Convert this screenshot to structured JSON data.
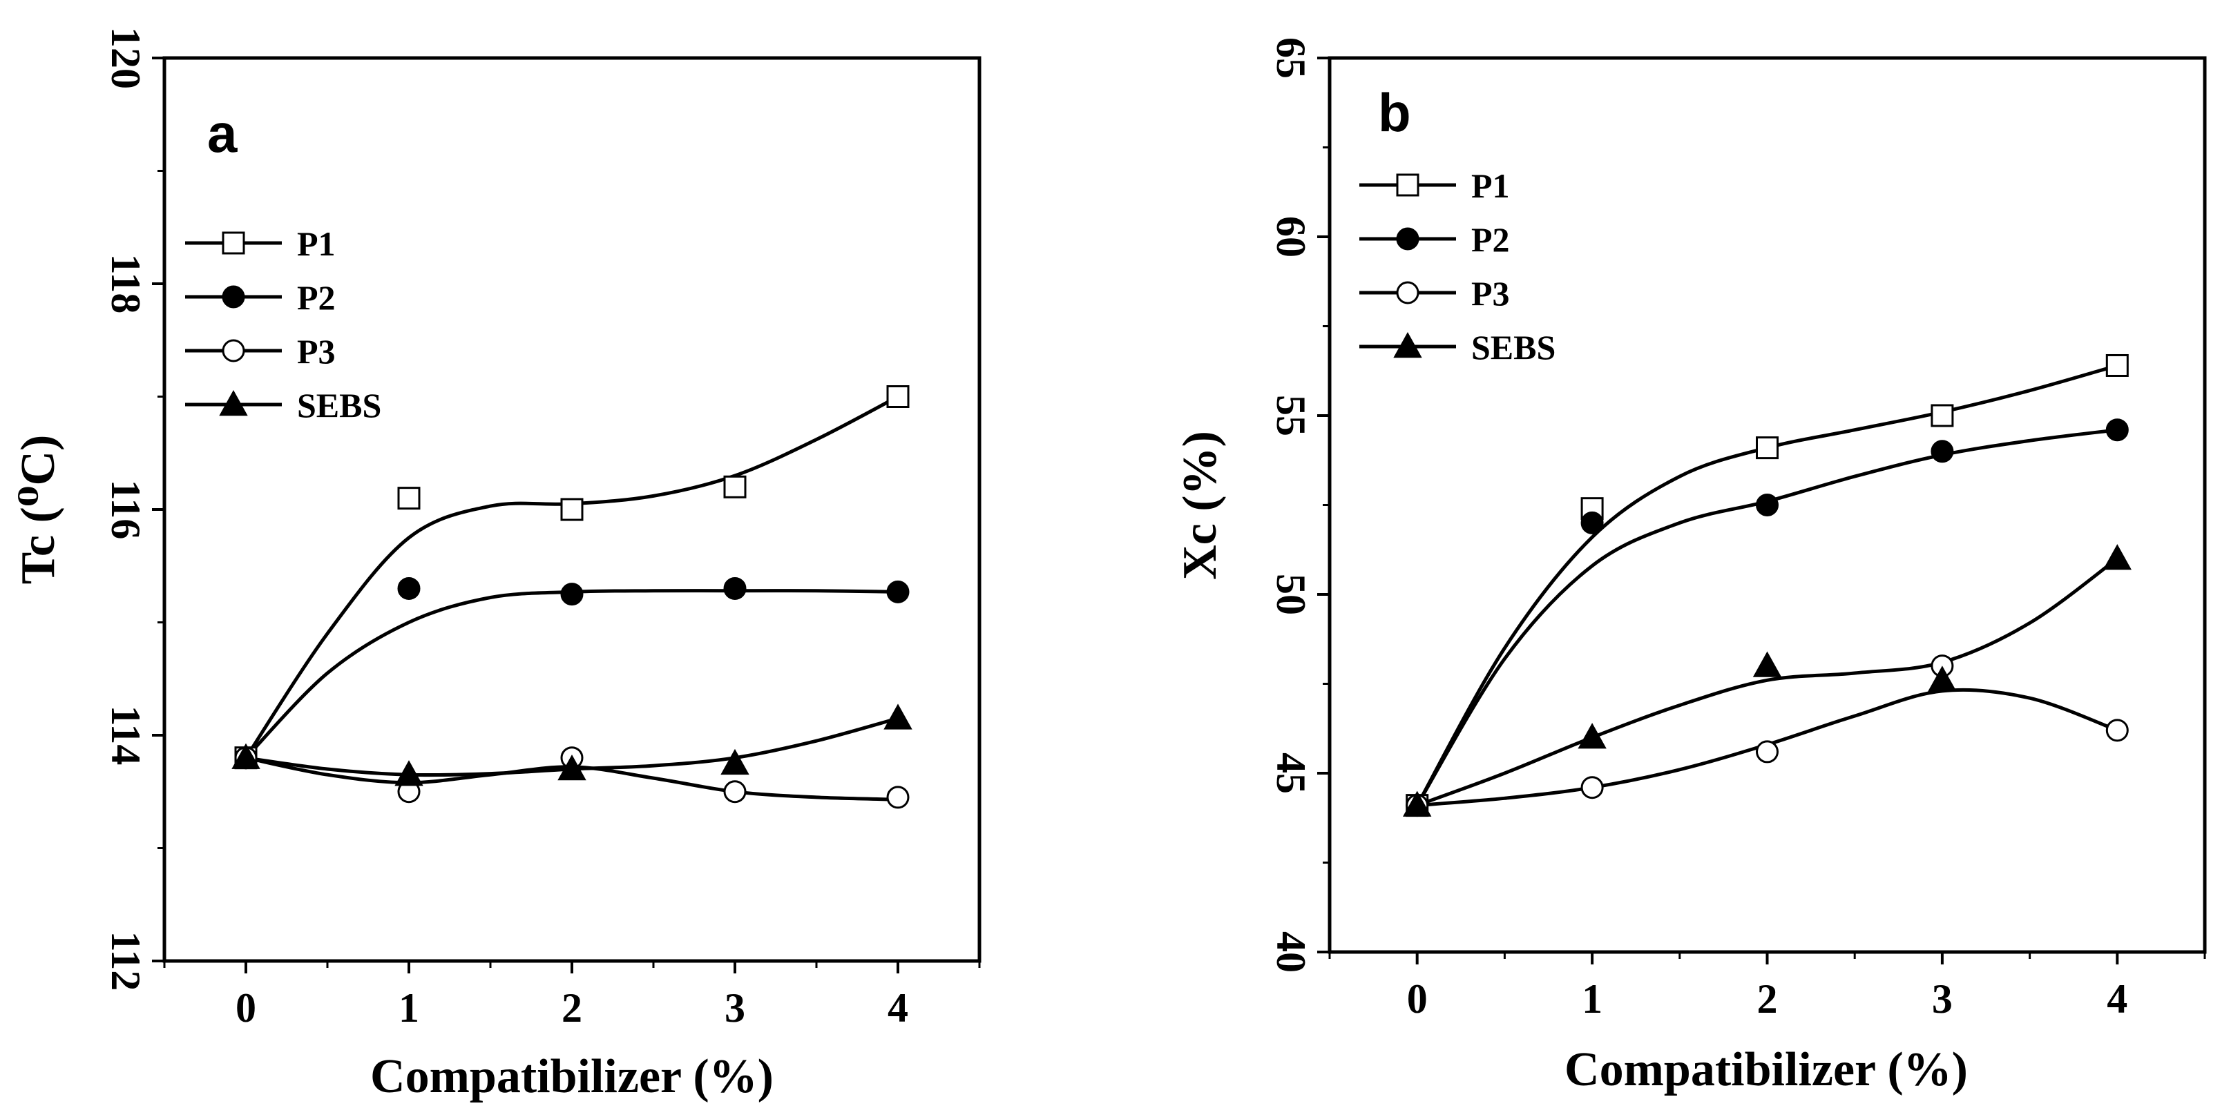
{
  "chart_data": [
    {
      "type": "line",
      "panel_label": "a",
      "xlabel": "Compatibilizer (%)",
      "ylabel": "Tc (⁰C)",
      "xlim": [
        -0.5,
        4.5
      ],
      "ylim": [
        112,
        120
      ],
      "x_ticks": [
        0,
        1,
        2,
        3,
        4
      ],
      "x_tick_labels": [
        "0",
        "1",
        "2",
        "3",
        "4"
      ],
      "y_ticks": [
        112,
        114,
        116,
        118,
        120
      ],
      "y_tick_labels": [
        "112",
        "114",
        "116",
        "118",
        "120"
      ],
      "legend_position": "upper-left",
      "series": [
        {
          "name": "P1",
          "marker": "open-square",
          "x": [
            0,
            1,
            2,
            3,
            4
          ],
          "values": [
            113.8,
            116.1,
            116.0,
            116.2,
            117.0
          ]
        },
        {
          "name": "P2",
          "marker": "filled-circle",
          "x": [
            0,
            1,
            2,
            3,
            4
          ],
          "values": [
            113.8,
            115.3,
            115.25,
            115.3,
            115.27
          ]
        },
        {
          "name": "P3",
          "marker": "open-circle",
          "x": [
            0,
            1,
            2,
            3,
            4
          ],
          "values": [
            113.8,
            113.5,
            113.8,
            113.5,
            113.45
          ]
        },
        {
          "name": "SEBS",
          "marker": "filled-triangle",
          "x": [
            0,
            1,
            2,
            3,
            4
          ],
          "values": [
            113.8,
            113.65,
            113.7,
            113.75,
            114.15
          ]
        }
      ],
      "fit_curves": [
        {
          "name": "P1",
          "x": [
            0,
            0.5,
            1,
            1.5,
            2,
            2.5,
            3,
            3.5,
            4
          ],
          "values": [
            113.8,
            114.9,
            115.75,
            116.03,
            116.05,
            116.12,
            116.3,
            116.62,
            117.0
          ]
        },
        {
          "name": "P2",
          "x": [
            0,
            0.5,
            1,
            1.5,
            2,
            2.5,
            3,
            3.5,
            4
          ],
          "values": [
            113.8,
            114.55,
            115.0,
            115.22,
            115.27,
            115.28,
            115.28,
            115.28,
            115.27
          ]
        },
        {
          "name": "P3",
          "x": [
            0,
            0.5,
            1,
            1.5,
            2,
            2.5,
            3,
            3.5,
            4
          ],
          "values": [
            113.8,
            113.65,
            113.58,
            113.65,
            113.72,
            113.62,
            113.5,
            113.45,
            113.43
          ]
        },
        {
          "name": "SEBS",
          "x": [
            0,
            0.5,
            1,
            1.5,
            2,
            2.5,
            3,
            3.5,
            4
          ],
          "values": [
            113.8,
            113.7,
            113.65,
            113.66,
            113.7,
            113.73,
            113.8,
            113.95,
            114.15
          ]
        }
      ]
    },
    {
      "type": "line",
      "panel_label": "b",
      "xlabel": "Compatibilizer (%)",
      "ylabel": "Xc (%)",
      "xlim": [
        -0.5,
        4.5
      ],
      "ylim": [
        40,
        65
      ],
      "x_ticks": [
        0,
        1,
        2,
        3,
        4
      ],
      "x_tick_labels": [
        "0",
        "1",
        "2",
        "3",
        "4"
      ],
      "y_ticks": [
        40,
        45,
        50,
        55,
        60,
        65
      ],
      "y_tick_labels": [
        "40",
        "45",
        "50",
        "55",
        "60",
        "65"
      ],
      "legend_position": "upper-left",
      "series": [
        {
          "name": "P1",
          "marker": "open-square",
          "x": [
            0,
            1,
            2,
            3,
            4
          ],
          "values": [
            44.1,
            52.4,
            54.1,
            55.0,
            56.4
          ]
        },
        {
          "name": "P2",
          "marker": "filled-circle",
          "x": [
            0,
            1,
            2,
            3,
            4
          ],
          "values": [
            44.1,
            52.0,
            52.5,
            54.0,
            54.6
          ]
        },
        {
          "name": "P3",
          "marker": "open-circle",
          "x": [
            0,
            1,
            2,
            3,
            4
          ],
          "values": [
            44.1,
            44.6,
            45.6,
            48.0,
            46.2
          ]
        },
        {
          "name": "SEBS",
          "marker": "filled-triangle",
          "x": [
            0,
            1,
            2,
            3,
            4
          ],
          "values": [
            44.1,
            46.0,
            48.0,
            47.6,
            51.0
          ]
        }
      ],
      "fit_curves": [
        {
          "name": "P1",
          "x": [
            0,
            0.5,
            1,
            1.5,
            2,
            2.5,
            3,
            3.5,
            4
          ],
          "values": [
            44.1,
            48.5,
            51.6,
            53.3,
            54.1,
            54.6,
            55.1,
            55.7,
            56.4
          ]
        },
        {
          "name": "P2",
          "x": [
            0,
            0.5,
            1,
            1.5,
            2,
            2.5,
            3,
            3.5,
            4
          ],
          "values": [
            44.1,
            48.2,
            50.8,
            52.0,
            52.6,
            53.3,
            53.9,
            54.3,
            54.6
          ]
        },
        {
          "name": "P3",
          "x": [
            0,
            0.5,
            1,
            1.5,
            2,
            2.5,
            3,
            3.5,
            4
          ],
          "values": [
            44.1,
            44.3,
            44.6,
            45.1,
            45.8,
            46.6,
            47.3,
            47.1,
            46.2
          ]
        },
        {
          "name": "SEBS",
          "x": [
            0,
            0.5,
            1,
            1.5,
            2,
            2.5,
            3,
            3.5,
            4
          ],
          "values": [
            44.1,
            45.0,
            46.0,
            46.9,
            47.6,
            47.8,
            48.1,
            49.2,
            51.0
          ]
        }
      ]
    }
  ]
}
